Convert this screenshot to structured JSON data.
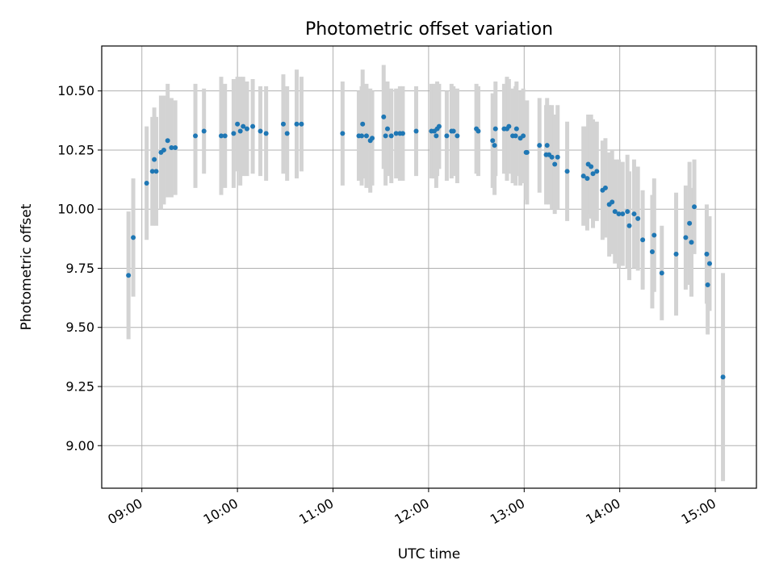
{
  "chart_data": {
    "type": "scatter",
    "title": "Photometric offset variation",
    "xlabel": "UTC time",
    "ylabel": "Photometric offset",
    "x_unit": "UTC hour",
    "xlim": [
      8.58,
      15.43
    ],
    "ylim": [
      8.82,
      10.69
    ],
    "xticks": [
      {
        "value": 9,
        "label": "09:00"
      },
      {
        "value": 10,
        "label": "10:00"
      },
      {
        "value": 11,
        "label": "11:00"
      },
      {
        "value": 12,
        "label": "12:00"
      },
      {
        "value": 13,
        "label": "13:00"
      },
      {
        "value": 14,
        "label": "14:00"
      },
      {
        "value": 15,
        "label": "15:00"
      }
    ],
    "yticks": [
      {
        "value": 9.0,
        "label": "9.00"
      },
      {
        "value": 9.25,
        "label": "9.25"
      },
      {
        "value": 9.5,
        "label": "9.50"
      },
      {
        "value": 9.75,
        "label": "9.75"
      },
      {
        "value": 10.0,
        "label": "10.00"
      },
      {
        "value": 10.25,
        "label": "10.25"
      },
      {
        "value": 10.5,
        "label": "10.50"
      }
    ],
    "grid": true,
    "legend": "none",
    "colors": {
      "point": "#1f77b4",
      "errorbar": "#d3d3d3"
    },
    "points": [
      [
        8.86,
        9.72,
        0.27
      ],
      [
        8.91,
        9.88,
        0.25
      ],
      [
        9.05,
        10.11,
        0.24
      ],
      [
        9.11,
        10.16,
        0.23
      ],
      [
        9.13,
        10.21,
        0.22
      ],
      [
        9.15,
        10.16,
        0.23
      ],
      [
        9.2,
        10.24,
        0.24
      ],
      [
        9.23,
        10.25,
        0.23
      ],
      [
        9.27,
        10.29,
        0.24
      ],
      [
        9.31,
        10.26,
        0.21
      ],
      [
        9.35,
        10.26,
        0.2
      ],
      [
        9.56,
        10.31,
        0.22
      ],
      [
        9.65,
        10.33,
        0.18
      ],
      [
        9.83,
        10.31,
        0.25
      ],
      [
        9.87,
        10.31,
        0.22
      ],
      [
        9.96,
        10.32,
        0.23
      ],
      [
        10.0,
        10.36,
        0.2
      ],
      [
        10.03,
        10.33,
        0.23
      ],
      [
        10.06,
        10.35,
        0.21
      ],
      [
        10.1,
        10.34,
        0.2
      ],
      [
        10.16,
        10.35,
        0.2
      ],
      [
        10.24,
        10.33,
        0.19
      ],
      [
        10.3,
        10.32,
        0.2
      ],
      [
        10.48,
        10.36,
        0.21
      ],
      [
        10.52,
        10.32,
        0.2
      ],
      [
        10.62,
        10.36,
        0.23
      ],
      [
        10.67,
        10.36,
        0.2
      ],
      [
        11.1,
        10.32,
        0.22
      ],
      [
        11.27,
        10.31,
        0.19
      ],
      [
        11.3,
        10.31,
        0.21
      ],
      [
        11.31,
        10.36,
        0.23
      ],
      [
        11.35,
        10.31,
        0.22
      ],
      [
        11.39,
        10.29,
        0.22
      ],
      [
        11.41,
        10.3,
        0.2
      ],
      [
        11.53,
        10.39,
        0.22
      ],
      [
        11.55,
        10.31,
        0.21
      ],
      [
        11.57,
        10.34,
        0.2
      ],
      [
        11.61,
        10.31,
        0.2
      ],
      [
        11.66,
        10.32,
        0.19
      ],
      [
        11.7,
        10.32,
        0.2
      ],
      [
        11.73,
        10.32,
        0.2
      ],
      [
        11.87,
        10.33,
        0.19
      ],
      [
        12.03,
        10.33,
        0.2
      ],
      [
        12.06,
        10.33,
        0.2
      ],
      [
        12.08,
        10.31,
        0.22
      ],
      [
        12.09,
        10.34,
        0.2
      ],
      [
        12.11,
        10.35,
        0.18
      ],
      [
        12.19,
        10.31,
        0.19
      ],
      [
        12.24,
        10.33,
        0.2
      ],
      [
        12.26,
        10.33,
        0.19
      ],
      [
        12.3,
        10.31,
        0.2
      ],
      [
        12.5,
        10.34,
        0.19
      ],
      [
        12.52,
        10.33,
        0.19
      ],
      [
        12.67,
        10.29,
        0.2
      ],
      [
        12.69,
        10.27,
        0.21
      ],
      [
        12.7,
        10.34,
        0.2
      ],
      [
        12.79,
        10.34,
        0.19
      ],
      [
        12.82,
        10.34,
        0.22
      ],
      [
        12.84,
        10.35,
        0.2
      ],
      [
        12.88,
        10.31,
        0.2
      ],
      [
        12.91,
        10.31,
        0.21
      ],
      [
        12.92,
        10.34,
        0.2
      ],
      [
        12.96,
        10.3,
        0.2
      ],
      [
        12.99,
        10.31,
        0.2
      ],
      [
        13.02,
        10.24,
        0.2
      ],
      [
        13.03,
        10.24,
        0.22
      ],
      [
        13.16,
        10.27,
        0.2
      ],
      [
        13.23,
        10.23,
        0.21
      ],
      [
        13.24,
        10.27,
        0.2
      ],
      [
        13.26,
        10.23,
        0.21
      ],
      [
        13.29,
        10.22,
        0.22
      ],
      [
        13.32,
        10.19,
        0.21
      ],
      [
        13.35,
        10.22,
        0.22
      ],
      [
        13.45,
        10.16,
        0.21
      ],
      [
        13.62,
        10.14,
        0.21
      ],
      [
        13.66,
        10.13,
        0.22
      ],
      [
        13.67,
        10.19,
        0.21
      ],
      [
        13.7,
        10.18,
        0.22
      ],
      [
        13.72,
        10.15,
        0.23
      ],
      [
        13.76,
        10.16,
        0.21
      ],
      [
        13.82,
        10.08,
        0.21
      ],
      [
        13.85,
        10.09,
        0.21
      ],
      [
        13.89,
        10.02,
        0.22
      ],
      [
        13.92,
        10.03,
        0.22
      ],
      [
        13.95,
        9.99,
        0.22
      ],
      [
        13.99,
        9.98,
        0.23
      ],
      [
        14.03,
        9.98,
        0.22
      ],
      [
        14.08,
        9.99,
        0.24
      ],
      [
        14.1,
        9.93,
        0.23
      ],
      [
        14.15,
        9.98,
        0.23
      ],
      [
        14.19,
        9.96,
        0.22
      ],
      [
        14.24,
        9.87,
        0.21
      ],
      [
        14.34,
        9.82,
        0.24
      ],
      [
        14.36,
        9.89,
        0.24
      ],
      [
        14.44,
        9.73,
        0.2
      ],
      [
        14.59,
        9.81,
        0.26
      ],
      [
        14.69,
        9.88,
        0.22
      ],
      [
        14.73,
        9.94,
        0.26
      ],
      [
        14.75,
        9.86,
        0.23
      ],
      [
        14.78,
        10.01,
        0.2
      ],
      [
        14.91,
        9.81,
        0.21
      ],
      [
        14.92,
        9.68,
        0.21
      ],
      [
        14.94,
        9.77,
        0.2
      ],
      [
        15.08,
        9.29,
        0.44
      ]
    ]
  }
}
